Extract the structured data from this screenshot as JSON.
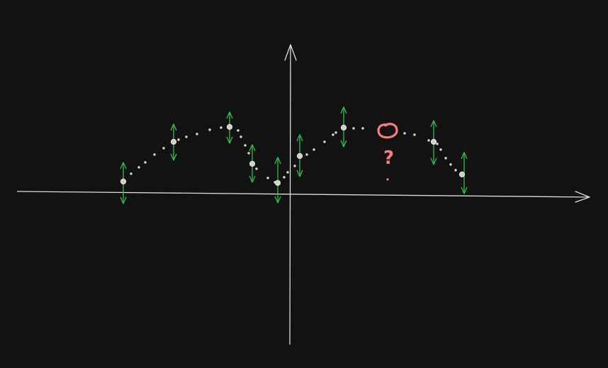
{
  "colors": {
    "background": "#121212",
    "axis": "#dcdcdc",
    "sample_point": "#e6e6e6",
    "sample_point_fill": "#cfcfcf",
    "dotted_curve": "#d9d9d9",
    "error_arrow": "#2fbf4a",
    "query_mark": "#ff7b7b"
  },
  "annotations": {
    "question_mark": "?"
  }
}
